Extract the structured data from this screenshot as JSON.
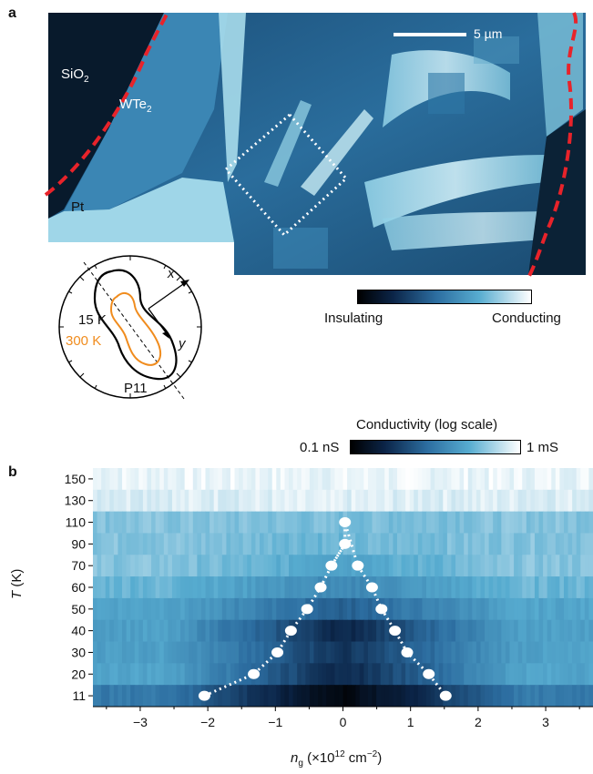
{
  "panel_a": {
    "letter": "a",
    "scale_bar": "5 µm",
    "labels": {
      "sio2": "SiO",
      "sio2_sub": "2",
      "wte2": "WTe",
      "wte2_sub": "2",
      "pt": "Pt"
    },
    "colorbar": {
      "low": "Insulating",
      "high": "Conducting"
    },
    "polar": {
      "axis_x": "x",
      "axis_y": "y",
      "t_low": "15 K",
      "t_high": "300 K",
      "sample": "P11",
      "color_low": "#000000",
      "color_high": "#f08c1e"
    },
    "colors": {
      "contact_outline": "#e8232a",
      "map_dark": "#071626",
      "map_light": "#cfe9f2"
    }
  },
  "panel_b": {
    "letter": "b",
    "colorbar": {
      "title": "Conductivity (log scale)",
      "low": "0.1 nS",
      "high": "1 mS"
    },
    "xlabel_main": "n",
    "xlabel_sub": "g",
    "xlabel_rest": " (×10",
    "xlabel_exp": "12",
    "xlabel_unit": " cm",
    "xlabel_unit_exp": "−2",
    "xlabel_close": ")",
    "ylabel_main": "T",
    "ylabel_rest": " (K)"
  },
  "chart_data": {
    "type": "heatmap",
    "xlabel": "n_g (×10^12 cm^−2)",
    "ylabel": "T (K)",
    "xlim": [
      -3.7,
      3.7
    ],
    "x_ticks": [
      "−3",
      "−2",
      "−1",
      "0",
      "1",
      "2",
      "3"
    ],
    "x_tick_values": [
      -3,
      -2,
      -1,
      0,
      1,
      2,
      3
    ],
    "y_categories": [
      "150",
      "130",
      "110",
      "90",
      "70",
      "60",
      "50",
      "40",
      "30",
      "20",
      "11"
    ],
    "boundary_points": [
      {
        "x": -2.05,
        "y": "11"
      },
      {
        "x": -1.32,
        "y": "20"
      },
      {
        "x": -0.97,
        "y": "30"
      },
      {
        "x": -0.77,
        "y": "40"
      },
      {
        "x": -0.53,
        "y": "50"
      },
      {
        "x": -0.33,
        "y": "60"
      },
      {
        "x": -0.17,
        "y": "70"
      },
      {
        "x": 0.03,
        "y": "90"
      },
      {
        "x": 0.03,
        "y": "110"
      },
      {
        "x": 0.22,
        "y": "70"
      },
      {
        "x": 0.43,
        "y": "60"
      },
      {
        "x": 0.57,
        "y": "50"
      },
      {
        "x": 0.77,
        "y": "40"
      },
      {
        "x": 0.95,
        "y": "30"
      },
      {
        "x": 1.27,
        "y": "20"
      },
      {
        "x": 1.52,
        "y": "11"
      }
    ],
    "row_min_level": [
      0.97,
      0.95,
      0.8,
      0.78,
      0.72,
      0.6,
      0.45,
      0.25,
      0.3,
      0.25,
      0.05
    ],
    "row_edge_level": [
      0.97,
      0.95,
      0.82,
      0.82,
      0.82,
      0.78,
      0.72,
      0.7,
      0.7,
      0.72,
      0.55
    ],
    "colorscale": [
      "#000000",
      "#0b2447",
      "#2c6da0",
      "#57acd0",
      "#ffffff"
    ]
  }
}
